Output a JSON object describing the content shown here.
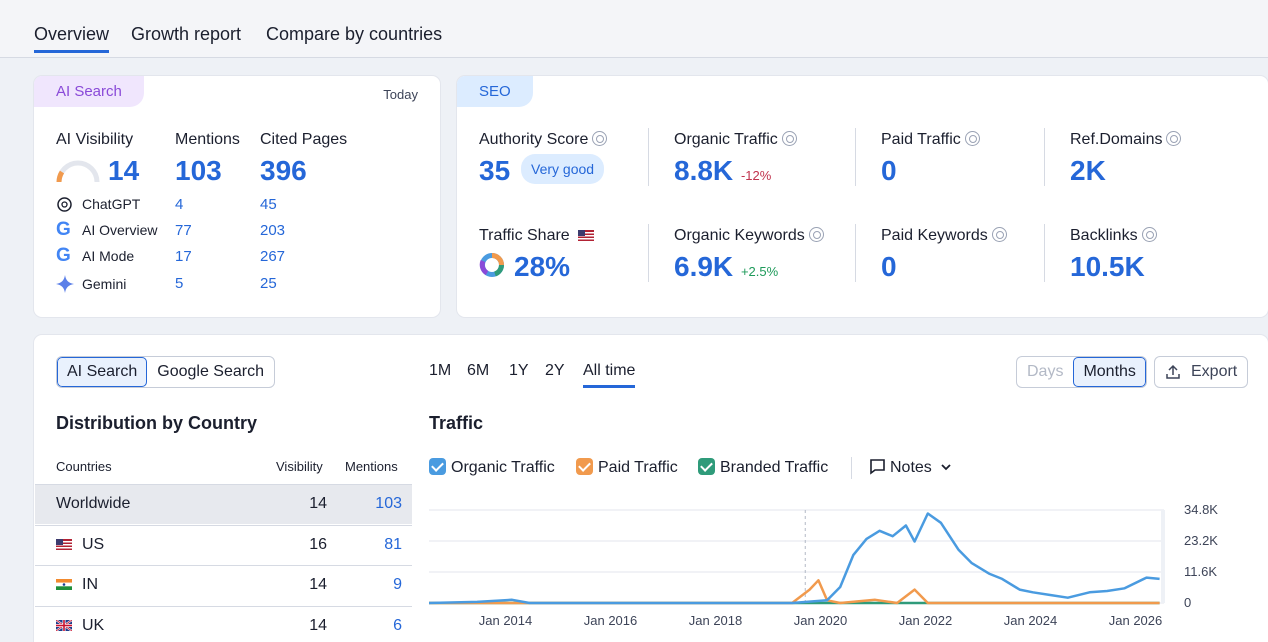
{
  "tabs": [
    "Overview",
    "Growth report",
    "Compare by countries"
  ],
  "ai_card": {
    "pill": "AI Search",
    "date": "Today",
    "col_visibility": "AI Visibility",
    "col_mentions": "Mentions",
    "col_cited": "Cited Pages",
    "visibility": "14",
    "mentions": "103",
    "cited": "396",
    "sources": [
      {
        "name": "ChatGPT",
        "mentions": "4",
        "cited": "45"
      },
      {
        "name": "AI Overview",
        "mentions": "77",
        "cited": "203"
      },
      {
        "name": "AI Mode",
        "mentions": "17",
        "cited": "267"
      },
      {
        "name": "Gemini",
        "mentions": "5",
        "cited": "25"
      }
    ]
  },
  "seo_card": {
    "pill": "SEO",
    "authority_label": "Authority Score",
    "authority_value": "35",
    "authority_badge": "Very good",
    "organic_traffic_label": "Organic Traffic",
    "organic_traffic_value": "8.8K",
    "organic_traffic_delta": "-12%",
    "paid_traffic_label": "Paid Traffic",
    "paid_traffic_value": "0",
    "ref_domains_label": "Ref.Domains",
    "ref_domains_value": "2K",
    "traffic_share_label": "Traffic Share",
    "traffic_share_value": "28%",
    "organic_keywords_label": "Organic Keywords",
    "organic_keywords_value": "6.9K",
    "organic_keywords_delta": "+2.5%",
    "paid_keywords_label": "Paid Keywords",
    "paid_keywords_value": "0",
    "backlinks_label": "Backlinks",
    "backlinks_value": "10.5K"
  },
  "bottom": {
    "toggle_ai": "AI Search",
    "toggle_google": "Google Search",
    "dist_title": "Distribution by Country",
    "table_headers": [
      "Countries",
      "Visibility",
      "Mentions"
    ],
    "rows": [
      {
        "country": "Worldwide",
        "visibility": "14",
        "mentions": "103"
      },
      {
        "country": "US",
        "visibility": "16",
        "mentions": "81"
      },
      {
        "country": "IN",
        "visibility": "14",
        "mentions": "9"
      },
      {
        "country": "UK",
        "visibility": "14",
        "mentions": "6"
      }
    ],
    "ranges": [
      "1M",
      "6M",
      "1Y",
      "2Y",
      "All time"
    ],
    "traffic_title": "Traffic",
    "days": "Days",
    "months": "Months",
    "export": "Export",
    "notes": "Notes"
  },
  "colors": {
    "organic": "#4a9be0",
    "paid": "#f19a4d",
    "branded": "#2f9b7a",
    "accent": "#2567d8"
  },
  "chart_data": {
    "type": "line",
    "title": "Traffic",
    "xlabel": "",
    "ylabel": "",
    "x_ticks": [
      "Jan 2014",
      "Jan 2016",
      "Jan 2018",
      "Jan 2020",
      "Jan 2022",
      "Jan 2024",
      "Jan 2026"
    ],
    "y_ticks": [
      "34.8K",
      "23.2K",
      "11.6K",
      "0"
    ],
    "ylim": [
      0,
      34800
    ],
    "grid": true,
    "legend_position": "top-left",
    "series": [
      {
        "name": "Organic Traffic",
        "color": "#4a9be0",
        "points": [
          [
            "2012-07",
            0
          ],
          [
            "2013-06",
            400
          ],
          [
            "2014-02",
            1200
          ],
          [
            "2014-06",
            0
          ],
          [
            "2019-06",
            0
          ],
          [
            "2020-02",
            1000
          ],
          [
            "2020-05",
            6000
          ],
          [
            "2020-08",
            18000
          ],
          [
            "2020-11",
            24000
          ],
          [
            "2021-02",
            27000
          ],
          [
            "2021-05",
            25000
          ],
          [
            "2021-08",
            29000
          ],
          [
            "2021-10",
            23000
          ],
          [
            "2022-01",
            33500
          ],
          [
            "2022-04",
            30000
          ],
          [
            "2022-08",
            20000
          ],
          [
            "2022-11",
            15000
          ],
          [
            "2023-03",
            11000
          ],
          [
            "2023-06",
            9000
          ],
          [
            "2023-10",
            5000
          ],
          [
            "2024-01",
            4000
          ],
          [
            "2024-05",
            3000
          ],
          [
            "2024-09",
            2000
          ],
          [
            "2025-02",
            4000
          ],
          [
            "2025-06",
            4500
          ],
          [
            "2025-10",
            5500
          ],
          [
            "2026-03",
            9500
          ],
          [
            "2026-06",
            9000
          ]
        ]
      },
      {
        "name": "Paid Traffic",
        "color": "#f19a4d",
        "points": [
          [
            "2012-07",
            0
          ],
          [
            "2019-06",
            0
          ],
          [
            "2019-10",
            5000
          ],
          [
            "2019-12",
            8500
          ],
          [
            "2020-02",
            1000
          ],
          [
            "2020-05",
            0
          ],
          [
            "2021-01",
            1200
          ],
          [
            "2021-06",
            0
          ],
          [
            "2021-10",
            5000
          ],
          [
            "2022-01",
            0
          ],
          [
            "2026-06",
            0
          ]
        ]
      },
      {
        "name": "Branded Traffic",
        "color": "#2f9b7a",
        "points": [
          [
            "2012-07",
            0
          ],
          [
            "2026-06",
            0
          ]
        ]
      }
    ]
  }
}
